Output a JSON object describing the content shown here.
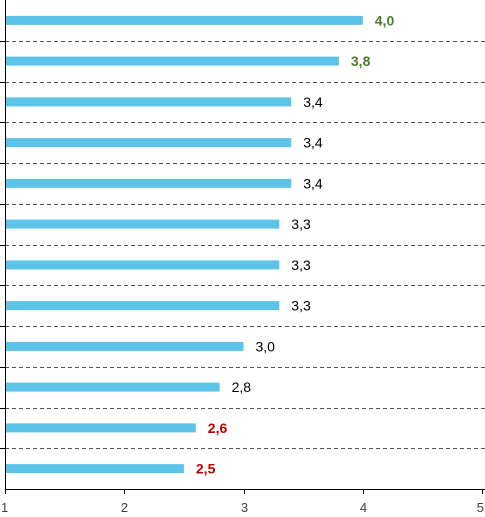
{
  "chart_data": {
    "type": "bar",
    "orientation": "horizontal",
    "title": "",
    "xlabel": "",
    "ylabel": "",
    "xlim": [
      1,
      5
    ],
    "x_ticks": [
      "1",
      "2",
      "3",
      "4",
      "5"
    ],
    "grid": "dashed horizontal separators between categories",
    "legend": "none",
    "bar_color": "#5bc4e8",
    "values": [
      4.0,
      3.8,
      3.4,
      3.4,
      3.4,
      3.3,
      3.3,
      3.3,
      3.0,
      2.8,
      2.6,
      2.5
    ],
    "data_labels": [
      "4,0",
      "3,8",
      "3,4",
      "3,4",
      "3,4",
      "3,3",
      "3,3",
      "3,3",
      "3,0",
      "2,8",
      "2,6",
      "2,5"
    ],
    "label_styles": [
      "high",
      "high",
      "normal",
      "normal",
      "normal",
      "normal",
      "normal",
      "normal",
      "normal",
      "normal",
      "low",
      "low"
    ],
    "label_colors": {
      "high": "#4f7a28",
      "low": "#c00000",
      "normal": "#000000"
    }
  }
}
